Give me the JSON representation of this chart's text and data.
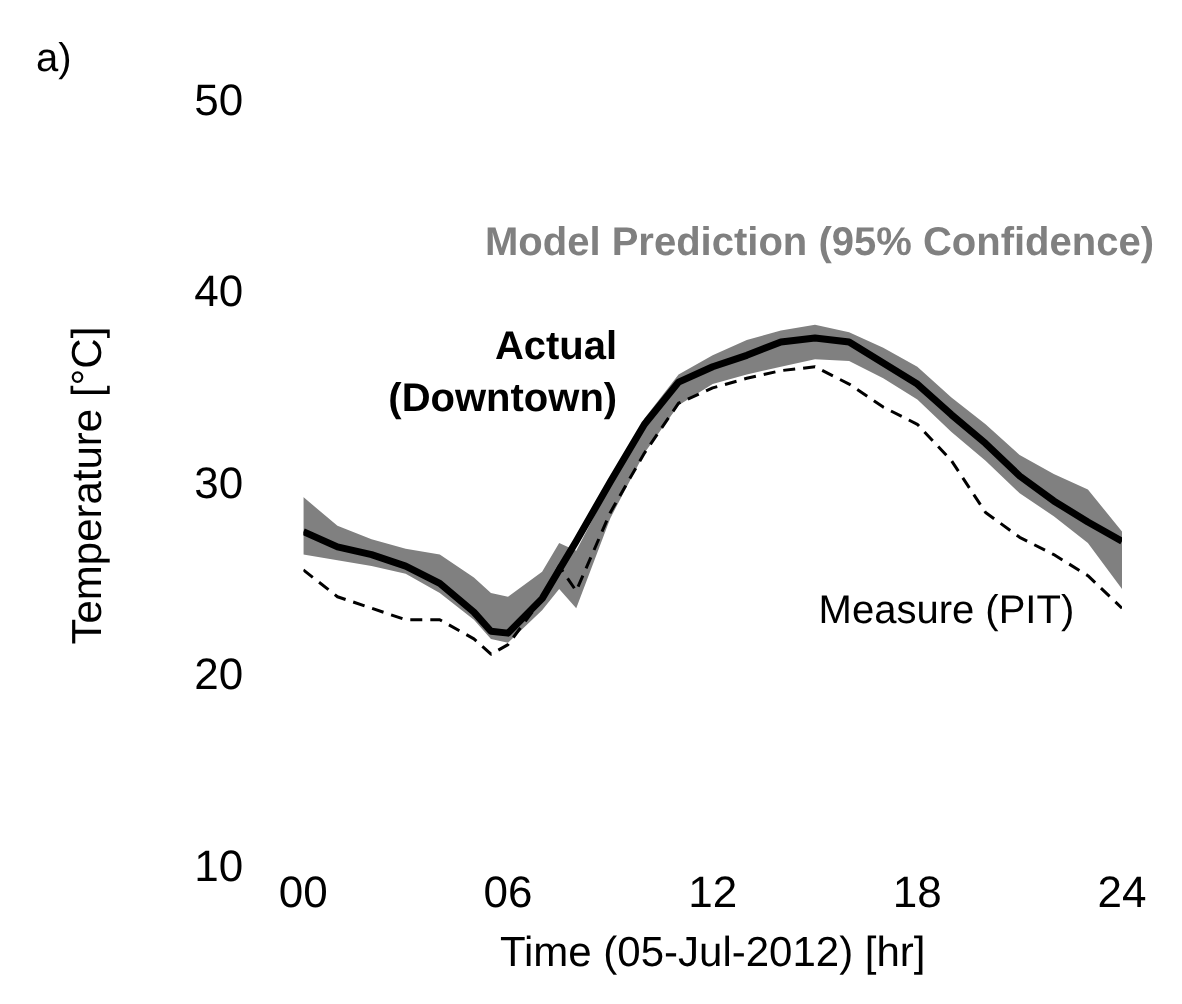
{
  "chart_data": {
    "type": "line",
    "xlabel": "Time (05-Jul-2012) [hr]",
    "ylabel": "Temperature [°C]",
    "annotations": [
      "a)"
    ],
    "x": [
      0,
      1,
      2,
      3,
      4,
      5,
      5.5,
      6,
      7,
      7.5,
      8,
      9,
      10,
      11,
      12,
      13,
      14,
      15,
      16,
      17,
      18,
      19,
      20,
      21,
      22,
      23,
      24
    ],
    "xlim": [
      0,
      24
    ],
    "xticks": [
      {
        "value": 0,
        "label": "00"
      },
      {
        "value": 6,
        "label": "06"
      },
      12,
      18,
      24
    ],
    "ylim": [
      10,
      50
    ],
    "yticks": [
      10,
      20,
      30,
      40,
      50
    ],
    "grid": false,
    "legend": false,
    "series": [
      {
        "name": "Model Prediction (95% Confidence)",
        "type": "area",
        "color": "#808080",
        "values": [
          null,
          null,
          null,
          null,
          null,
          null,
          null,
          null,
          null,
          null,
          null,
          null,
          null,
          null,
          null,
          null,
          null,
          null,
          null,
          null,
          null,
          null,
          null,
          null,
          null,
          null,
          null
        ],
        "lower": [
          26.4,
          26.1,
          25.8,
          25.4,
          24.4,
          23.0,
          22.0,
          21.8,
          23.5,
          24.6,
          23.6,
          28.3,
          31.7,
          34.2,
          35.3,
          35.8,
          36.2,
          36.6,
          36.5,
          35.6,
          34.5,
          32.8,
          31.3,
          29.6,
          28.4,
          27.0,
          24.6
        ],
        "upper": [
          29.4,
          27.9,
          27.2,
          26.7,
          26.4,
          25.2,
          24.4,
          24.2,
          25.5,
          27.0,
          26.6,
          30.0,
          33.5,
          35.8,
          36.8,
          37.6,
          38.1,
          38.4,
          38.0,
          37.2,
          36.2,
          34.6,
          33.2,
          31.6,
          30.6,
          29.8,
          27.6
        ]
      },
      {
        "name": "Measure (PIT)",
        "color": "#000000",
        "line_style": "dashed",
        "values": [
          25.6,
          24.2,
          23.6,
          23.0,
          23.0,
          22.0,
          21.2,
          21.7,
          24.1,
          25.8,
          24.5,
          28.6,
          31.7,
          34.3,
          35.1,
          35.6,
          36.0,
          36.2,
          35.3,
          34.1,
          33.2,
          31.3,
          28.6,
          27.3,
          26.4,
          25.3,
          23.6
        ]
      },
      {
        "name": "Actual (Downtown)",
        "color": "#000000",
        "line_style": "solid",
        "values": [
          27.6,
          26.8,
          26.4,
          25.8,
          24.9,
          23.4,
          22.4,
          22.3,
          24.1,
          25.6,
          27.1,
          30.2,
          33.2,
          35.4,
          36.2,
          36.8,
          37.5,
          37.7,
          37.5,
          36.4,
          35.3,
          33.7,
          32.2,
          30.5,
          29.2,
          28.1,
          27.1
        ]
      }
    ]
  }
}
